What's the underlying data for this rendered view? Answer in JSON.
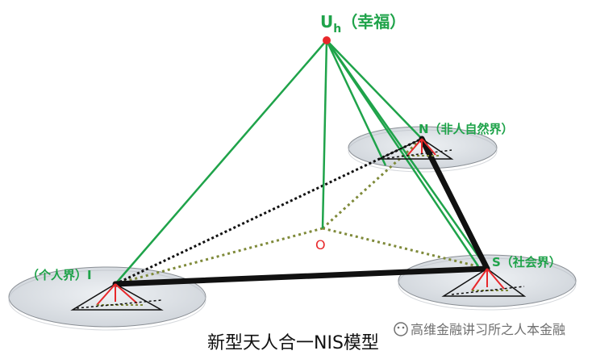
{
  "diagram": {
    "apex_label": "U",
    "apex_subscript": "h",
    "apex_note": "（幸福）",
    "center_label": "O",
    "node_n_label": "N（非人自然界）",
    "node_i_label": "（个人界）I",
    "node_s_label": "S（社会界）",
    "caption": "新型天人合一NIS模型",
    "watermark": "高维金融讲习所之人本金融"
  },
  "colors": {
    "green": "#1fa34a",
    "red": "#e8282b",
    "black": "#111111",
    "olive": "#7f8a3a",
    "disc_fill": "#dfe3e8",
    "disc_stroke": "#8a8f95"
  }
}
